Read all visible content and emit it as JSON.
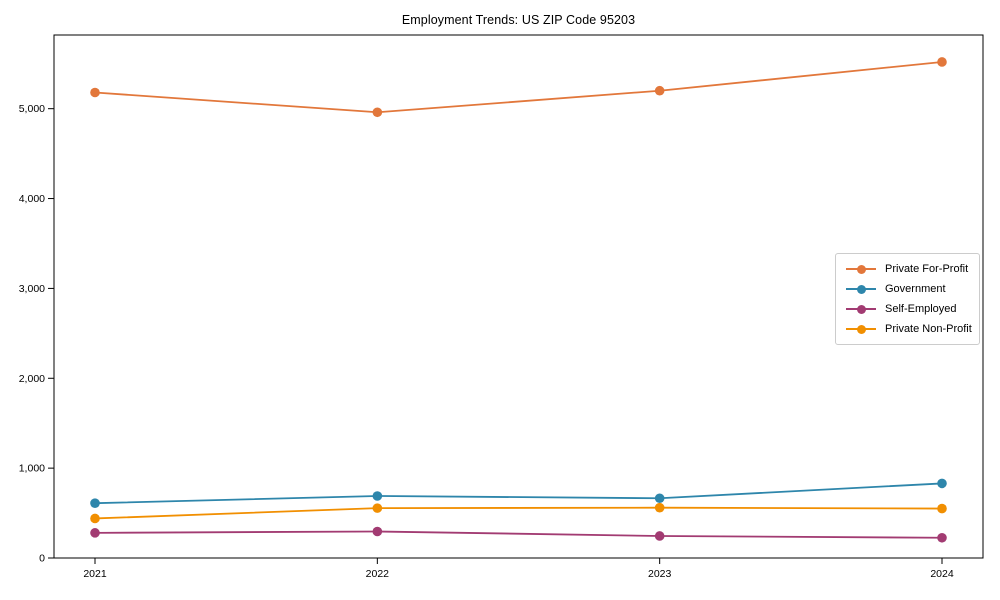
{
  "chart_data": {
    "type": "line",
    "title": "Employment Trends: US ZIP Code 95203",
    "xlabel": "",
    "ylabel": "",
    "categories": [
      "2021",
      "2022",
      "2023",
      "2024"
    ],
    "series": [
      {
        "name": "Private For-Profit",
        "color": "#E2773B",
        "values": [
          5180,
          4960,
          5200,
          5520
        ]
      },
      {
        "name": "Government",
        "color": "#2E86AB",
        "values": [
          610,
          690,
          665,
          830
        ]
      },
      {
        "name": "Self-Employed",
        "color": "#A23B72",
        "values": [
          280,
          295,
          245,
          225
        ]
      },
      {
        "name": "Private Non-Profit",
        "color": "#F18F01",
        "values": [
          440,
          555,
          560,
          550
        ]
      }
    ],
    "ylim": [
      0,
      5820
    ],
    "y_ticks": [
      0,
      1000,
      2000,
      3000,
      4000,
      5000
    ],
    "y_tick_labels": [
      "0",
      "1,000",
      "2,000",
      "3,000",
      "4,000",
      "5,000"
    ],
    "grid": false,
    "legend_position": "center-right",
    "axis_color": "#000000",
    "background_color": "#ffffff",
    "marker": "circle"
  }
}
